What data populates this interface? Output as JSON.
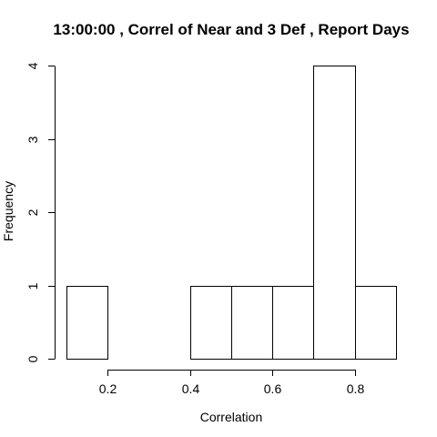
{
  "chart_data": {
    "type": "bar",
    "subtype": "histogram",
    "title": "13:00:00 , Correl of Near and 3 Def , Report Days",
    "xlabel": "Correlation",
    "ylabel": "Frequency",
    "bin_edges": [
      0.1,
      0.2,
      0.3,
      0.4,
      0.5,
      0.6,
      0.7,
      0.8,
      0.9
    ],
    "values": [
      1,
      0,
      0,
      1,
      1,
      1,
      4,
      1
    ],
    "xlim": [
      0.1,
      0.9
    ],
    "ylim": [
      0,
      4
    ],
    "x_ticks": [
      0.2,
      0.4,
      0.6,
      0.8
    ],
    "x_tick_labels": [
      "0.2",
      "0.4",
      "0.6",
      "0.8"
    ],
    "y_ticks": [
      0,
      1,
      2,
      3,
      4
    ],
    "y_tick_labels": [
      "0",
      "1",
      "2",
      "3",
      "4"
    ],
    "grid": false,
    "colors": {
      "bar_fill": "#ffffff",
      "bar_stroke": "#000000"
    }
  }
}
